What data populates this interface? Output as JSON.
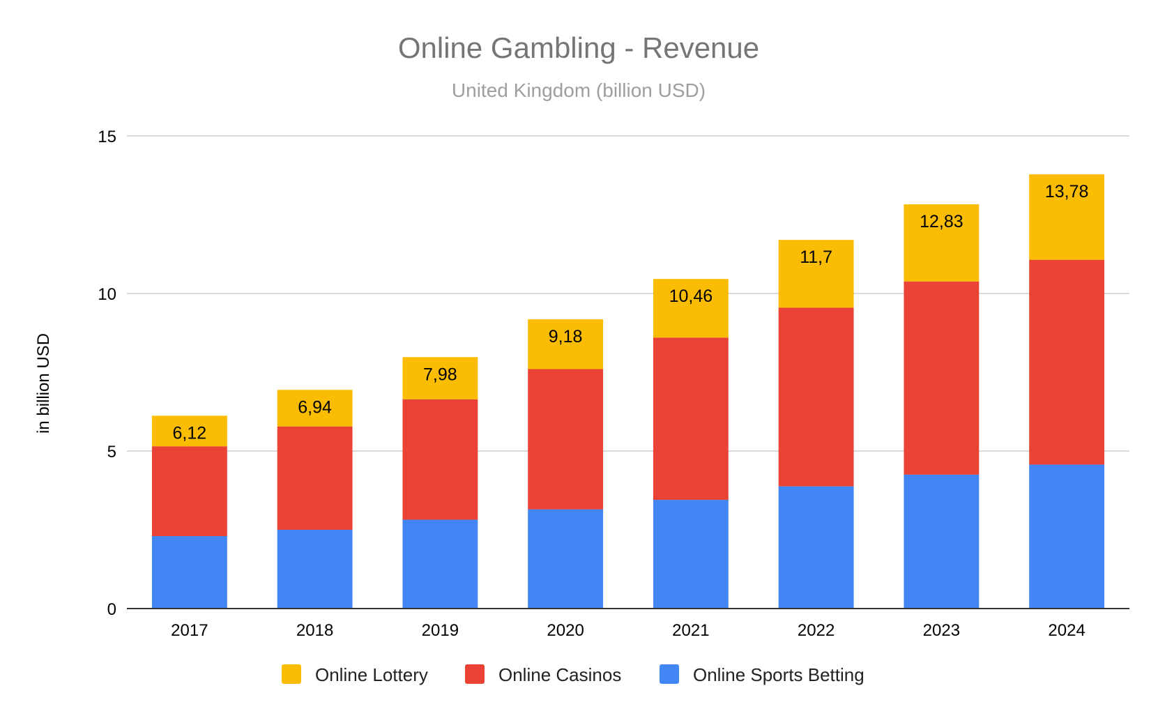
{
  "chart_data": {
    "type": "bar",
    "stacked": true,
    "title": "Online Gambling - Revenue",
    "subtitle": "United Kingdom (billion USD)",
    "xlabel": "",
    "ylabel": "in billion USD",
    "ylim": [
      0,
      15
    ],
    "yticks": [
      0,
      5,
      10,
      15
    ],
    "grid": true,
    "legend_position": "bottom",
    "categories": [
      "2017",
      "2018",
      "2019",
      "2020",
      "2021",
      "2022",
      "2023",
      "2024"
    ],
    "series": [
      {
        "name": "Online Sports Betting",
        "color": "#4285F4",
        "values": [
          2.3,
          2.5,
          2.82,
          3.15,
          3.45,
          3.88,
          4.25,
          4.57
        ]
      },
      {
        "name": "Online Casinos",
        "color": "#EA4335",
        "values": [
          2.85,
          3.28,
          3.82,
          4.45,
          5.15,
          5.67,
          6.13,
          6.5
        ]
      },
      {
        "name": "Online Lottery",
        "color": "#FBBC04",
        "values": [
          0.97,
          1.16,
          1.34,
          1.58,
          1.86,
          2.15,
          2.45,
          2.71
        ]
      }
    ],
    "totals": [
      6.12,
      6.94,
      7.98,
      9.18,
      10.46,
      11.7,
      12.83,
      13.78
    ],
    "total_labels": [
      "6,12",
      "6,94",
      "7,98",
      "9,18",
      "10,46",
      "11,7",
      "12,83",
      "13,78"
    ],
    "legend_order": [
      "Online Lottery",
      "Online Casinos",
      "Online Sports Betting"
    ]
  }
}
